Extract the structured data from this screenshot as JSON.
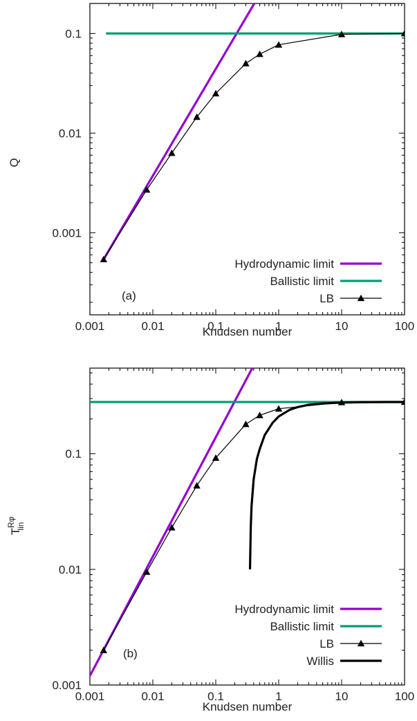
{
  "chart_data": [
    {
      "type": "line",
      "panel_label": "(a)",
      "xlabel": "Knudsen number",
      "ylabel": "Q",
      "x_scale": "log",
      "y_scale": "log",
      "xlim": [
        0.001,
        100
      ],
      "ylim": [
        0.00015,
        0.2
      ],
      "x_ticks": [
        0.001,
        0.01,
        0.1,
        1,
        10,
        100
      ],
      "x_tick_labels": [
        "0.001",
        "0.01",
        "0.1",
        "1",
        "10",
        "100"
      ],
      "y_ticks": [
        0.001,
        0.01,
        0.1
      ],
      "y_tick_labels": [
        "0.001",
        "0.01",
        "0.1"
      ],
      "legend_position": "bottom-right",
      "series": [
        {
          "name": "Hydrodynamic limit",
          "color": "#9400d3",
          "style": "line",
          "x": [
            0.00165,
            0.41
          ],
          "y": [
            0.00054,
            0.2
          ]
        },
        {
          "name": "Ballistic limit",
          "color": "#009e73",
          "style": "line",
          "x": [
            0.0018,
            100
          ],
          "y": [
            0.1,
            0.1
          ]
        },
        {
          "name": "LB",
          "color": "#000000",
          "style": "line-triangles",
          "x": [
            0.00165,
            0.008,
            0.02,
            0.05,
            0.1,
            0.3,
            0.5,
            1,
            10,
            100
          ],
          "y": [
            0.00054,
            0.0027,
            0.0063,
            0.0145,
            0.025,
            0.05,
            0.062,
            0.077,
            0.098,
            0.1
          ]
        }
      ]
    },
    {
      "type": "line",
      "panel_label": "(b)",
      "xlabel": "Knudsen number",
      "ylabel_main": "T",
      "ylabel_sup": "Rφ",
      "ylabel_sub": "lin",
      "x_scale": "log",
      "y_scale": "log",
      "xlim": [
        0.001,
        100
      ],
      "ylim": [
        0.001,
        0.55
      ],
      "x_ticks": [
        0.001,
        0.01,
        0.1,
        1,
        10,
        100
      ],
      "x_tick_labels": [
        "0.001",
        "0.01",
        "0.1",
        "1",
        "10",
        "100"
      ],
      "y_ticks": [
        0.001,
        0.01,
        0.1
      ],
      "y_tick_labels": [
        "0.001",
        "0.01",
        "0.1"
      ],
      "legend_position": "bottom-right",
      "series": [
        {
          "name": "Hydrodynamic limit",
          "color": "#9400d3",
          "style": "line",
          "x": [
            0.001,
            0.38
          ],
          "y": [
            0.0012,
            0.55
          ]
        },
        {
          "name": "Ballistic limit",
          "color": "#009e73",
          "style": "line",
          "x": [
            0.001,
            100
          ],
          "y": [
            0.28,
            0.28
          ]
        },
        {
          "name": "LB",
          "color": "#000000",
          "style": "line-triangles",
          "x": [
            0.00165,
            0.008,
            0.02,
            0.05,
            0.1,
            0.3,
            0.5,
            1,
            10,
            100
          ],
          "y": [
            0.002,
            0.0095,
            0.023,
            0.053,
            0.092,
            0.18,
            0.215,
            0.245,
            0.278,
            0.28
          ]
        },
        {
          "name": "Willis",
          "color": "#000000",
          "style": "thick-line",
          "x": [
            0.35,
            0.36,
            0.37,
            0.4,
            0.45,
            0.5,
            0.6,
            0.8,
            1,
            1.5,
            2,
            3,
            5,
            10,
            20,
            50,
            100
          ],
          "y": [
            0.01,
            0.023,
            0.035,
            0.06,
            0.09,
            0.11,
            0.145,
            0.185,
            0.21,
            0.24,
            0.253,
            0.265,
            0.272,
            0.277,
            0.279,
            0.28,
            0.28
          ]
        }
      ]
    }
  ]
}
